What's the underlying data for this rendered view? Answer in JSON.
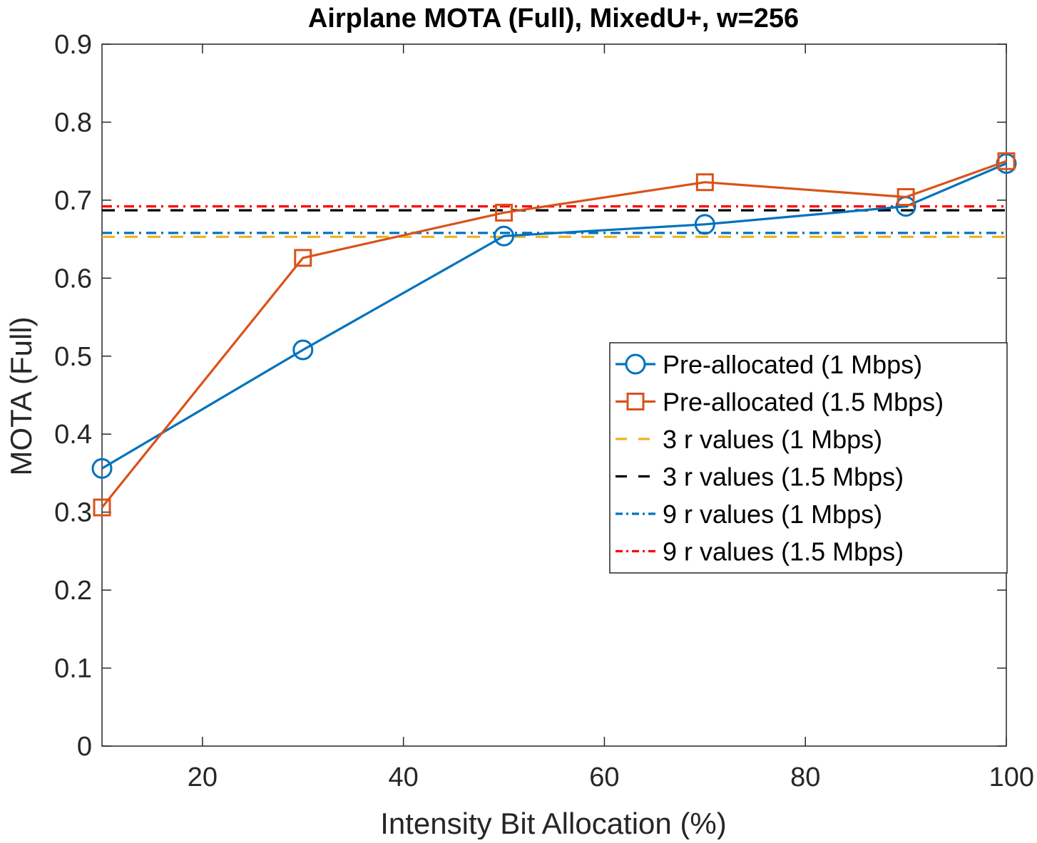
{
  "colors": {
    "blue": "#0072BD",
    "orange": "#D95319",
    "yellow": "#EDB120",
    "black": "#000000",
    "red": "#FF0000"
  },
  "chart_data": {
    "type": "line",
    "title": "Airplane MOTA (Full), MixedU+, w=256",
    "xlabel": "Intensity Bit Allocation (%)",
    "ylabel": "MOTA (Full)",
    "xlim": [
      10,
      100
    ],
    "ylim": [
      0,
      0.9
    ],
    "xticks": [
      20,
      40,
      60,
      80,
      100
    ],
    "yticks": [
      0,
      0.1,
      0.2,
      0.3,
      0.4,
      0.5,
      0.6,
      0.7,
      0.8,
      0.9
    ],
    "xtick_labels": [
      "20",
      "40",
      "60",
      "80",
      "100"
    ],
    "ytick_labels": [
      "0",
      "0.1",
      "0.2",
      "0.3",
      "0.4",
      "0.5",
      "0.6",
      "0.7",
      "0.8",
      "0.9"
    ],
    "grid": false,
    "legend_position": "right",
    "series": [
      {
        "name": "Pre-allocated (1 Mbps)",
        "style": "solid",
        "marker": "circle",
        "color": "#0072BD",
        "x": [
          10,
          30,
          50,
          70,
          90,
          100
        ],
        "y": [
          0.356,
          0.508,
          0.654,
          0.669,
          0.692,
          0.747
        ]
      },
      {
        "name": "Pre-allocated (1.5 Mbps)",
        "style": "solid",
        "marker": "square",
        "color": "#D95319",
        "x": [
          10,
          30,
          50,
          70,
          90,
          100
        ],
        "y": [
          0.306,
          0.626,
          0.684,
          0.723,
          0.704,
          0.75
        ]
      },
      {
        "name": "3 r values (1 Mbps)",
        "style": "dashed",
        "marker": "none",
        "color": "#EDB120",
        "x": [
          10,
          100
        ],
        "y": [
          0.653,
          0.653
        ]
      },
      {
        "name": "3 r values (1.5 Mbps)",
        "style": "dashed",
        "marker": "none",
        "color": "#000000",
        "x": [
          10,
          100
        ],
        "y": [
          0.687,
          0.687
        ]
      },
      {
        "name": "9 r values (1 Mbps)",
        "style": "dashdot",
        "marker": "none",
        "color": "#0072BD",
        "x": [
          10,
          100
        ],
        "y": [
          0.658,
          0.658
        ]
      },
      {
        "name": "9 r values (1.5 Mbps)",
        "style": "dashdot",
        "marker": "none",
        "color": "#FF0000",
        "x": [
          10,
          100
        ],
        "y": [
          0.692,
          0.692
        ]
      }
    ]
  }
}
